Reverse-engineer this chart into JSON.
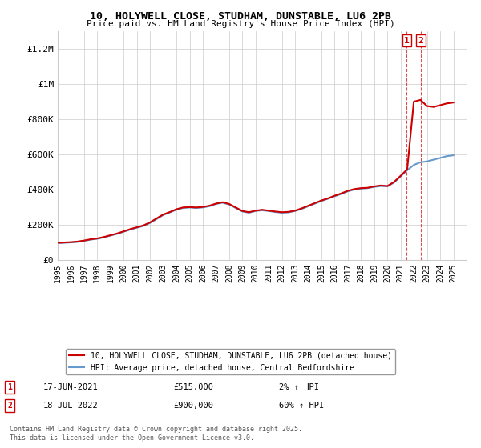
{
  "title_line1": "10, HOLYWELL CLOSE, STUDHAM, DUNSTABLE, LU6 2PB",
  "title_line2": "Price paid vs. HM Land Registry's House Price Index (HPI)",
  "ylabel_ticks": [
    "£0",
    "£200K",
    "£400K",
    "£600K",
    "£800K",
    "£1M",
    "£1.2M"
  ],
  "ytick_values": [
    0,
    200000,
    400000,
    600000,
    800000,
    1000000,
    1200000
  ],
  "ylim": [
    0,
    1300000
  ],
  "xlim_start": 1995,
  "xlim_end": 2026,
  "legend_line1": "10, HOLYWELL CLOSE, STUDHAM, DUNSTABLE, LU6 2PB (detached house)",
  "legend_line2": "HPI: Average price, detached house, Central Bedfordshire",
  "annotation1": {
    "num": "1",
    "date": "17-JUN-2021",
    "price": "£515,000",
    "change": "2% ↑ HPI"
  },
  "annotation2": {
    "num": "2",
    "date": "18-JUL-2022",
    "price": "£900,000",
    "change": "60% ↑ HPI"
  },
  "footer": "Contains HM Land Registry data © Crown copyright and database right 2025.\nThis data is licensed under the Open Government Licence v3.0.",
  "hpi_color": "#6699cc",
  "price_color": "#cc0000",
  "annotation_color": "#cc0000",
  "background_color": "#ffffff",
  "grid_color": "#cccccc",
  "sale1_x": 2021.46,
  "sale1_y": 515000,
  "sale2_x": 2022.54,
  "sale2_y": 900000,
  "hpi_x": [
    1995,
    1995.5,
    1996,
    1996.5,
    1997,
    1997.5,
    1998,
    1998.5,
    1999,
    1999.5,
    2000,
    2000.5,
    2001,
    2001.5,
    2002,
    2002.5,
    2003,
    2003.5,
    2004,
    2004.5,
    2005,
    2005.5,
    2006,
    2006.5,
    2007,
    2007.5,
    2008,
    2008.5,
    2009,
    2009.5,
    2010,
    2010.5,
    2011,
    2011.5,
    2012,
    2012.5,
    2013,
    2013.5,
    2014,
    2014.5,
    2015,
    2015.5,
    2016,
    2016.5,
    2017,
    2017.5,
    2018,
    2018.5,
    2019,
    2019.5,
    2020,
    2020.5,
    2021,
    2021.5,
    2022,
    2022.5,
    2023,
    2023.5,
    2024,
    2024.5,
    2025
  ],
  "hpi_y": [
    95000,
    97000,
    99000,
    102000,
    108000,
    115000,
    120000,
    128000,
    138000,
    148000,
    160000,
    172000,
    183000,
    193000,
    210000,
    232000,
    255000,
    270000,
    285000,
    295000,
    298000,
    295000,
    298000,
    305000,
    318000,
    325000,
    315000,
    295000,
    275000,
    268000,
    278000,
    282000,
    278000,
    272000,
    268000,
    270000,
    278000,
    290000,
    305000,
    320000,
    335000,
    348000,
    362000,
    375000,
    390000,
    400000,
    405000,
    408000,
    415000,
    420000,
    418000,
    440000,
    475000,
    510000,
    540000,
    555000,
    560000,
    570000,
    580000,
    590000,
    595000
  ],
  "price_x": [
    1995,
    1995.5,
    1996,
    1996.5,
    1997,
    1997.5,
    1998,
    1998.5,
    1999,
    1999.5,
    2000,
    2000.5,
    2001,
    2001.5,
    2002,
    2002.5,
    2003,
    2003.5,
    2004,
    2004.5,
    2005,
    2005.5,
    2006,
    2006.5,
    2007,
    2007.5,
    2008,
    2008.5,
    2009,
    2009.5,
    2010,
    2010.5,
    2011,
    2011.5,
    2012,
    2012.5,
    2013,
    2013.5,
    2014,
    2014.5,
    2015,
    2015.5,
    2016,
    2016.5,
    2017,
    2017.5,
    2018,
    2018.5,
    2019,
    2019.5,
    2020,
    2020.5,
    2021,
    2021.5,
    2022,
    2022.5,
    2023,
    2023.5,
    2024,
    2024.5,
    2025
  ],
  "price_y": [
    97000,
    99000,
    101000,
    104000,
    110000,
    117000,
    122000,
    130000,
    140000,
    150000,
    162000,
    175000,
    185000,
    196000,
    213000,
    236000,
    258000,
    272000,
    288000,
    298000,
    300000,
    298000,
    301000,
    308000,
    320000,
    328000,
    318000,
    298000,
    278000,
    271000,
    280000,
    285000,
    280000,
    275000,
    271000,
    273000,
    280000,
    293000,
    308000,
    323000,
    338000,
    350000,
    365000,
    378000,
    393000,
    403000,
    408000,
    410000,
    418000,
    423000,
    420000,
    443000,
    478000,
    515000,
    900000,
    910000,
    875000,
    870000,
    880000,
    890000,
    895000
  ]
}
